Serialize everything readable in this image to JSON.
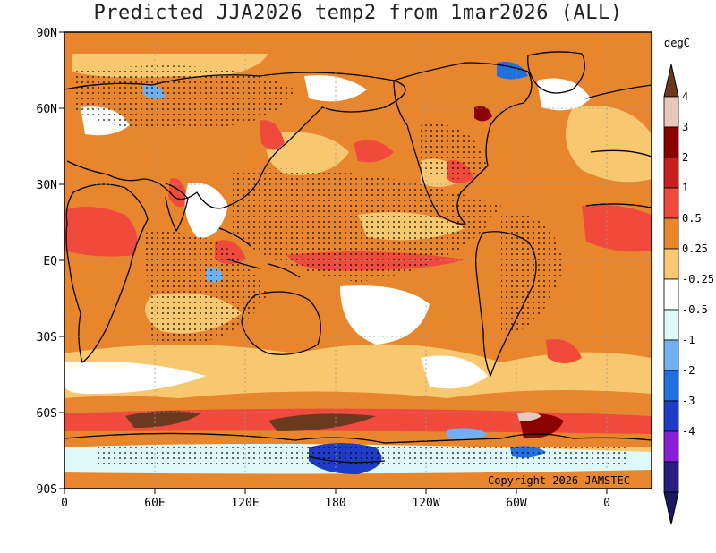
{
  "title": "Predicted JJA2026 temp2 from 1mar2026 (ALL)",
  "copyright": "Copyright 2026 JAMSTEC",
  "lat_ticks": [
    "90N",
    "60N",
    "30N",
    "EQ",
    "30S",
    "60S",
    "90S"
  ],
  "lon_ticks": [
    "0",
    "60E",
    "120E",
    "180",
    "120W",
    "60W",
    "0"
  ],
  "colorbar": {
    "unit": "degC",
    "labels": [
      "4",
      "3",
      "2",
      "1",
      "0.5",
      "0.25",
      "-0.25",
      "-0.5",
      "-1",
      "-2",
      "-3",
      "-4"
    ],
    "colors": [
      "#e8c8b8",
      "#8b0000",
      "#c81e1e",
      "#f04a3c",
      "#e8862e",
      "#f8c870",
      "#ffffff",
      "#dff8f8",
      "#70b0f0",
      "#2070e0",
      "#1e3cc8",
      "#8a1ed8",
      "#2a1e80"
    ],
    "top_color": "#6b3a1e",
    "bottom_color": "#1a1860"
  }
}
